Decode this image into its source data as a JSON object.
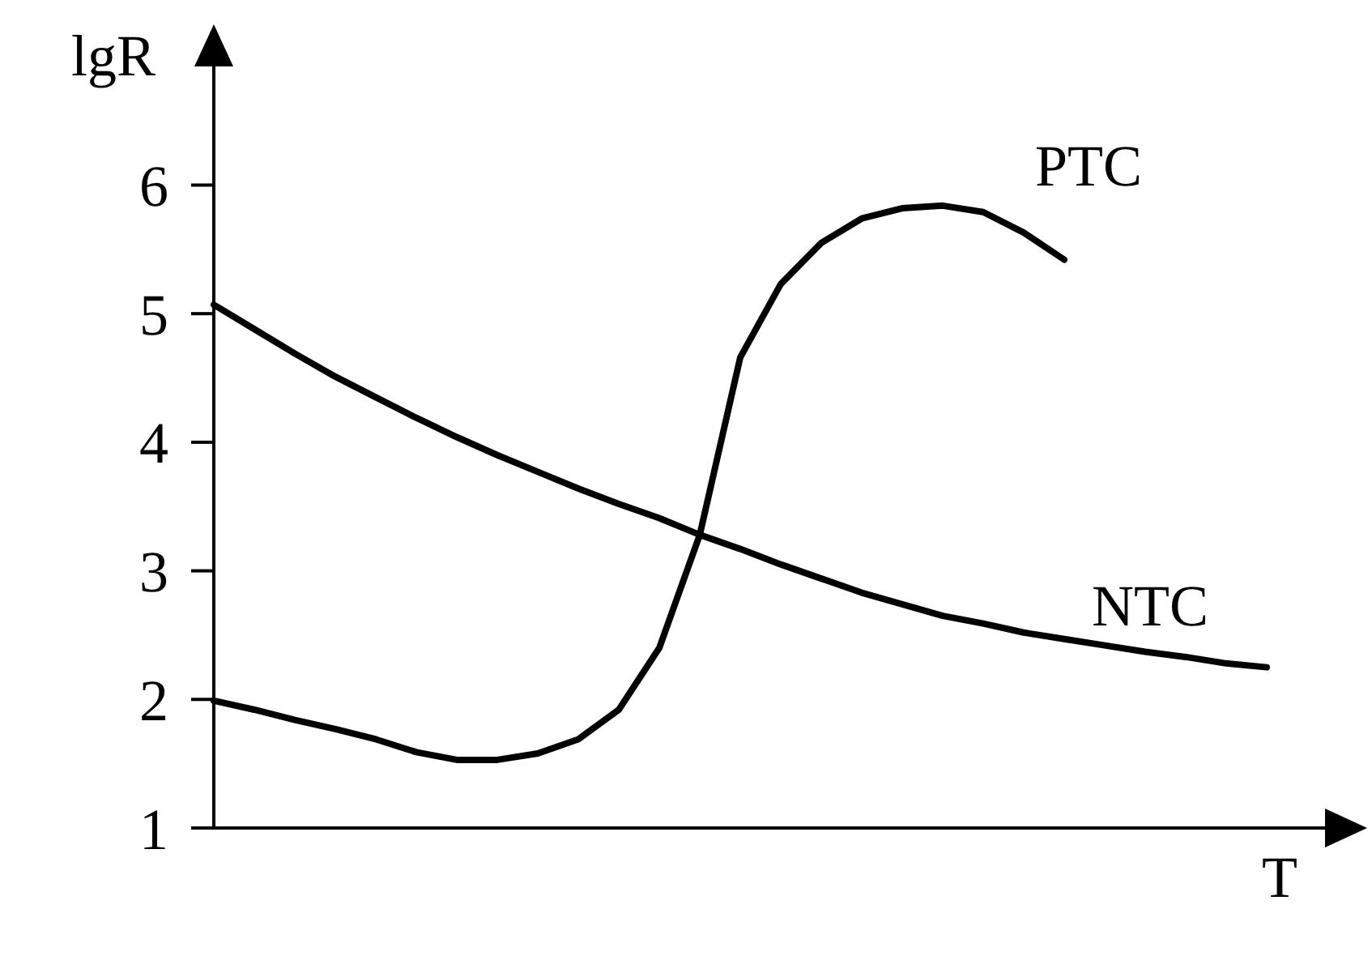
{
  "chart_data": {
    "type": "line",
    "xlabel": "T",
    "ylabel": "lgR",
    "categories": [
      null,
      null,
      null,
      null,
      null,
      null,
      null,
      null,
      null,
      null,
      null,
      null,
      null,
      null,
      null,
      null,
      null,
      null,
      null,
      null,
      null,
      null,
      null,
      null,
      null,
      null,
      null
    ],
    "series": [
      {
        "name": "PTC",
        "color": "#000000",
        "values": [
          1.99,
          1.92,
          1.84,
          1.77,
          1.69,
          1.59,
          1.53,
          1.53,
          1.58,
          1.69,
          1.92,
          2.4,
          3.28,
          4.66,
          5.23,
          5.55,
          5.74,
          5.82,
          5.84,
          5.79,
          5.63,
          5.42,
          null,
          null,
          null,
          null,
          null
        ]
      },
      {
        "name": "NTC",
        "color": "#000000",
        "values": [
          5.07,
          4.88,
          4.69,
          4.51,
          4.35,
          4.19,
          4.04,
          3.9,
          3.77,
          3.64,
          3.52,
          3.41,
          3.28,
          3.17,
          3.05,
          2.94,
          2.83,
          2.74,
          2.65,
          2.59,
          2.52,
          2.47,
          2.42,
          2.37,
          2.33,
          2.28,
          2.25
        ]
      }
    ],
    "ylim": [
      1,
      7.2
    ],
    "yticks": [
      1,
      2,
      3,
      4,
      5,
      6
    ],
    "grid": false,
    "legend": false,
    "marker": "none",
    "line_style": "solid"
  }
}
